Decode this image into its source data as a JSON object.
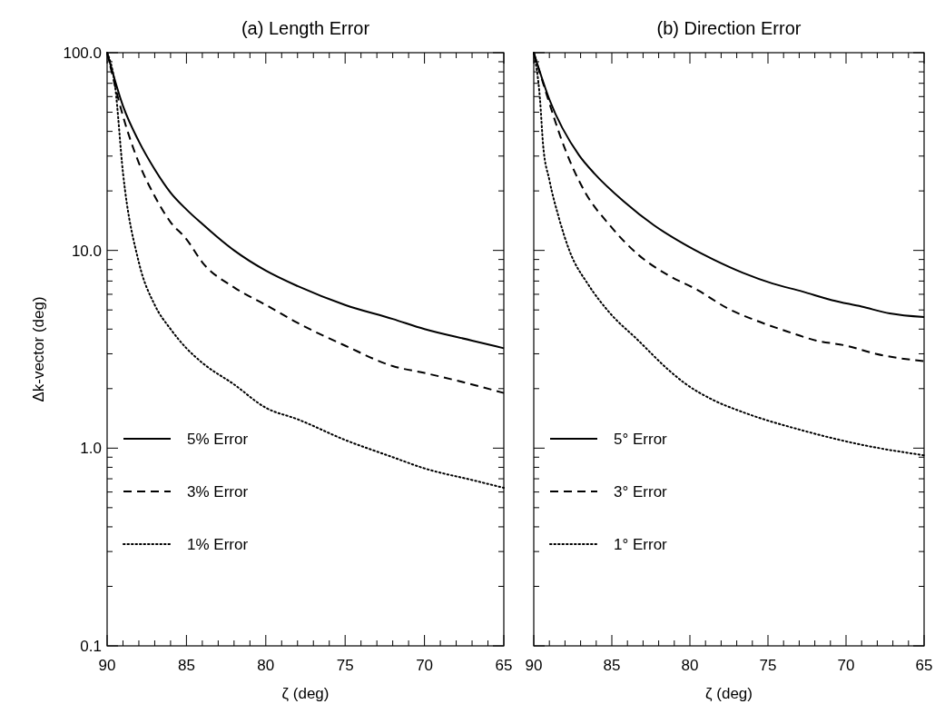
{
  "chart_data": [
    {
      "type": "line",
      "title": "(a) Length Error",
      "xlabel": "ζ (deg)",
      "ylabel": "Δk-vector (deg)",
      "log": "y",
      "xlim": [
        90,
        65
      ],
      "ylim": [
        0.1,
        100
      ],
      "xticks": [
        90,
        {
          "value": 89,
          "label": null
        },
        {
          "value": 88,
          "label": null
        },
        {
          "value": 87,
          "label": null
        },
        {
          "value": 86,
          "label": null
        },
        85,
        {
          "value": 84,
          "label": null
        },
        {
          "value": 83,
          "label": null
        },
        {
          "value": 82,
          "label": null
        },
        {
          "value": 81,
          "label": null
        },
        80,
        {
          "value": 79,
          "label": null
        },
        {
          "value": 78,
          "label": null
        },
        {
          "value": 77,
          "label": null
        },
        {
          "value": 76,
          "label": null
        },
        75,
        {
          "value": 74,
          "label": null
        },
        {
          "value": 73,
          "label": null
        },
        {
          "value": 72,
          "label": null
        },
        {
          "value": 71,
          "label": null
        },
        70,
        {
          "value": 69,
          "label": null
        },
        {
          "value": 68,
          "label": null
        },
        {
          "value": 67,
          "label": null
        },
        {
          "value": 66,
          "label": null
        },
        65
      ],
      "yticks": [
        {
          "value": 0.1,
          "label": "0.1"
        },
        {
          "value": 0.2,
          "label": null
        },
        {
          "value": 0.3,
          "label": null
        },
        {
          "value": 0.4,
          "label": null
        },
        {
          "value": 0.5,
          "label": null
        },
        {
          "value": 0.6,
          "label": null
        },
        {
          "value": 0.7,
          "label": null
        },
        {
          "value": 0.8,
          "label": null
        },
        {
          "value": 0.9,
          "label": null
        },
        {
          "value": 1,
          "label": "1.0"
        },
        {
          "value": 2,
          "label": null
        },
        {
          "value": 3,
          "label": null
        },
        {
          "value": 4,
          "label": null
        },
        {
          "value": 5,
          "label": null
        },
        {
          "value": 6,
          "label": null
        },
        {
          "value": 7,
          "label": null
        },
        {
          "value": 8,
          "label": null
        },
        {
          "value": 9,
          "label": null
        },
        {
          "value": 10,
          "label": "10.0"
        },
        {
          "value": 20,
          "label": null
        },
        {
          "value": 30,
          "label": null
        },
        {
          "value": 40,
          "label": null
        },
        {
          "value": 50,
          "label": null
        },
        {
          "value": 60,
          "label": null
        },
        {
          "value": 70,
          "label": null
        },
        {
          "value": 80,
          "label": null
        },
        {
          "value": 90,
          "label": null
        },
        {
          "value": 100,
          "label": "100.0"
        }
      ],
      "legend": "left",
      "grid": false,
      "series": [
        {
          "name": "5% Error",
          "color": "#000000",
          "line_style": "solid",
          "x": [
            90,
            89,
            88,
            87,
            86,
            85,
            84,
            82,
            80,
            78,
            75,
            72,
            70,
            67,
            65
          ],
          "values": [
            100,
            53.8,
            35.6,
            25.7,
            19.6,
            16.1,
            13.6,
            10,
            7.9,
            6.6,
            5.3,
            4.5,
            4.0,
            3.5,
            3.2
          ]
        },
        {
          "name": "3% Error",
          "color": "#000000",
          "line_style": "dashed",
          "x": [
            90,
            89,
            88,
            87,
            86,
            85,
            84,
            82,
            80,
            78,
            75,
            72,
            70,
            67,
            65
          ],
          "values": [
            100,
            47.8,
            27.7,
            18.8,
            13.9,
            11.4,
            8.7,
            6.5,
            5.3,
            4.3,
            3.3,
            2.6,
            2.4,
            2.1,
            1.9
          ]
        },
        {
          "name": "1% Error",
          "color": "#000000",
          "line_style": "dotted",
          "x": [
            90,
            89.5,
            89,
            88,
            87,
            86,
            85,
            84,
            82,
            80,
            78,
            75,
            72,
            70,
            67,
            65
          ],
          "values": [
            100,
            68,
            24.7,
            8.7,
            5.3,
            4.0,
            3.2,
            2.7,
            2.1,
            1.6,
            1.4,
            1.1,
            0.9,
            0.79,
            0.69,
            0.63
          ]
        }
      ]
    },
    {
      "type": "line",
      "title": "(b) Direction Error",
      "xlabel": "ζ (deg)",
      "log": "y",
      "xlim": [
        90,
        65
      ],
      "ylim": [
        0.1,
        100
      ],
      "tick_labels": "x",
      "xticks": [
        90,
        {
          "value": 89,
          "label": null
        },
        {
          "value": 88,
          "label": null
        },
        {
          "value": 87,
          "label": null
        },
        {
          "value": 86,
          "label": null
        },
        85,
        {
          "value": 84,
          "label": null
        },
        {
          "value": 83,
          "label": null
        },
        {
          "value": 82,
          "label": null
        },
        {
          "value": 81,
          "label": null
        },
        80,
        {
          "value": 79,
          "label": null
        },
        {
          "value": 78,
          "label": null
        },
        {
          "value": 77,
          "label": null
        },
        {
          "value": 76,
          "label": null
        },
        75,
        {
          "value": 74,
          "label": null
        },
        {
          "value": 73,
          "label": null
        },
        {
          "value": 72,
          "label": null
        },
        {
          "value": 71,
          "label": null
        },
        70,
        {
          "value": 69,
          "label": null
        },
        {
          "value": 68,
          "label": null
        },
        {
          "value": 67,
          "label": null
        },
        {
          "value": 66,
          "label": null
        },
        65
      ],
      "yticks": [
        {
          "value": 0.1,
          "label": null
        },
        {
          "value": 0.2,
          "label": null
        },
        {
          "value": 0.3,
          "label": null
        },
        {
          "value": 0.4,
          "label": null
        },
        {
          "value": 0.5,
          "label": null
        },
        {
          "value": 0.6,
          "label": null
        },
        {
          "value": 0.7,
          "label": null
        },
        {
          "value": 0.8,
          "label": null
        },
        {
          "value": 0.9,
          "label": null
        },
        {
          "value": 1,
          "label": null
        },
        {
          "value": 2,
          "label": null
        },
        {
          "value": 3,
          "label": null
        },
        {
          "value": 4,
          "label": null
        },
        {
          "value": 5,
          "label": null
        },
        {
          "value": 6,
          "label": null
        },
        {
          "value": 7,
          "label": null
        },
        {
          "value": 8,
          "label": null
        },
        {
          "value": 9,
          "label": null
        },
        {
          "value": 10,
          "label": null
        },
        {
          "value": 20,
          "label": null
        },
        {
          "value": 30,
          "label": null
        },
        {
          "value": 40,
          "label": null
        },
        {
          "value": 50,
          "label": null
        },
        {
          "value": 60,
          "label": null
        },
        {
          "value": 70,
          "label": null
        },
        {
          "value": 80,
          "label": null
        },
        {
          "value": 90,
          "label": null
        },
        {
          "value": 100,
          "label": null
        }
      ],
      "legend": "left",
      "grid": false,
      "series": [
        {
          "name": "5° Error",
          "color": "#000000",
          "line_style": "solid",
          "x": [
            90,
            89,
            87.1,
            86.1,
            84.2,
            82.3,
            80.4,
            78.5,
            76.6,
            74.7,
            72.8,
            70.9,
            69,
            67.2,
            65
          ],
          "values": [
            100,
            58,
            30.3,
            24.4,
            17.6,
            13.4,
            10.8,
            9.0,
            7.7,
            6.8,
            6.2,
            5.6,
            5.2,
            4.8,
            4.6
          ]
        },
        {
          "name": "3° Error",
          "color": "#000000",
          "line_style": "dashed",
          "x": [
            90,
            89.4,
            88,
            86.7,
            85.2,
            83.3,
            81.4,
            79.5,
            77.6,
            75.7,
            73.8,
            71.9,
            70,
            68.1,
            65
          ],
          "values": [
            100,
            70,
            32.6,
            19.6,
            13.6,
            9.5,
            7.5,
            6.3,
            5.1,
            4.4,
            3.9,
            3.5,
            3.3,
            3.0,
            2.75
          ]
        },
        {
          "name": "1° Error",
          "color": "#000000",
          "line_style": "dotted",
          "x": [
            90,
            89.6,
            89.4,
            89,
            88.4,
            87.7,
            86.5,
            85.2,
            83.3,
            81.4,
            80.4,
            78.5,
            76.6,
            72.8,
            69,
            65
          ],
          "values": [
            100,
            58,
            34,
            22.7,
            14.7,
            9.9,
            6.7,
            4.9,
            3.5,
            2.5,
            2.15,
            1.75,
            1.52,
            1.23,
            1.04,
            0.92
          ]
        }
      ]
    }
  ]
}
